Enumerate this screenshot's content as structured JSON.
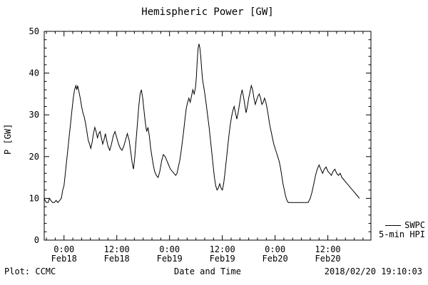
{
  "chart_data": {
    "type": "line",
    "title": "Hemispheric Power [GW]",
    "xlabel": "Date and Time",
    "ylabel": "P [GW]",
    "ylim": [
      0,
      50
    ],
    "y_ticks": [
      0,
      10,
      20,
      30,
      40,
      50
    ],
    "x_axis_unit": "hours since 2018-02-18 00:00",
    "xlim": [
      -4.5,
      69.8
    ],
    "x_ticks": [
      {
        "t": 0,
        "time": "0:00",
        "date": "Feb18"
      },
      {
        "t": 12,
        "time": "12:00",
        "date": "Feb18"
      },
      {
        "t": 24,
        "time": "0:00",
        "date": "Feb19"
      },
      {
        "t": 36,
        "time": "12:00",
        "date": "Feb19"
      },
      {
        "t": 48,
        "time": "0:00",
        "date": "Feb20"
      },
      {
        "t": 60,
        "time": "12:00",
        "date": "Feb20"
      }
    ],
    "grid": false,
    "line_color": "#000000",
    "background": "#ffffff",
    "legend": {
      "source": "SWPC",
      "series": "5-min HPI",
      "position": "outside-right-bottom"
    },
    "series": [
      {
        "name": "SWPC 5-min HPI",
        "points": [
          [
            -4.5,
            10
          ],
          [
            -4.3,
            9.5
          ],
          [
            -4.0,
            9
          ],
          [
            -3.6,
            9
          ],
          [
            -3.3,
            10
          ],
          [
            -3.0,
            9.5
          ],
          [
            -2.6,
            9
          ],
          [
            -2.2,
            9
          ],
          [
            -1.8,
            9.5
          ],
          [
            -1.4,
            9
          ],
          [
            -1.0,
            9.5
          ],
          [
            -0.6,
            10
          ],
          [
            -0.3,
            12
          ],
          [
            0,
            13
          ],
          [
            0.3,
            16
          ],
          [
            0.6,
            19
          ],
          [
            0.9,
            22
          ],
          [
            1.2,
            25
          ],
          [
            1.5,
            28
          ],
          [
            1.8,
            31
          ],
          [
            2.1,
            34
          ],
          [
            2.4,
            36
          ],
          [
            2.7,
            37
          ],
          [
            2.9,
            36
          ],
          [
            3.1,
            37
          ],
          [
            3.4,
            35.5
          ],
          [
            3.7,
            34
          ],
          [
            4.0,
            32
          ],
          [
            4.3,
            30.5
          ],
          [
            4.6,
            29.5
          ],
          [
            4.9,
            28
          ],
          [
            5.2,
            26
          ],
          [
            5.5,
            24
          ],
          [
            5.8,
            23
          ],
          [
            6.1,
            22
          ],
          [
            6.4,
            23.5
          ],
          [
            6.7,
            25.5
          ],
          [
            7.0,
            27
          ],
          [
            7.3,
            26
          ],
          [
            7.6,
            24.5
          ],
          [
            7.9,
            25.5
          ],
          [
            8.2,
            26
          ],
          [
            8.5,
            24.5
          ],
          [
            8.8,
            23
          ],
          [
            9.1,
            24
          ],
          [
            9.4,
            25.5
          ],
          [
            9.7,
            24
          ],
          [
            10.0,
            22.5
          ],
          [
            10.4,
            21.5
          ],
          [
            10.8,
            23
          ],
          [
            11.2,
            25
          ],
          [
            11.6,
            26
          ],
          [
            12.0,
            24.5
          ],
          [
            12.4,
            23
          ],
          [
            12.8,
            22
          ],
          [
            13.2,
            21.5
          ],
          [
            13.6,
            22.5
          ],
          [
            14.0,
            24
          ],
          [
            14.4,
            25.5
          ],
          [
            14.8,
            24
          ],
          [
            15.2,
            21
          ],
          [
            15.5,
            18.5
          ],
          [
            15.8,
            17
          ],
          [
            16.1,
            20
          ],
          [
            16.4,
            24
          ],
          [
            16.7,
            28
          ],
          [
            17.0,
            32
          ],
          [
            17.3,
            35
          ],
          [
            17.6,
            36
          ],
          [
            17.9,
            34
          ],
          [
            18.2,
            31
          ],
          [
            18.5,
            28
          ],
          [
            18.8,
            26
          ],
          [
            19.1,
            27
          ],
          [
            19.4,
            25
          ],
          [
            19.7,
            22
          ],
          [
            20.0,
            20
          ],
          [
            20.3,
            18
          ],
          [
            20.6,
            16.5
          ],
          [
            21.0,
            15.5
          ],
          [
            21.4,
            15
          ],
          [
            21.8,
            16.5
          ],
          [
            22.2,
            19
          ],
          [
            22.6,
            20.5
          ],
          [
            23.0,
            20
          ],
          [
            23.4,
            19
          ],
          [
            23.8,
            18
          ],
          [
            24.2,
            17
          ],
          [
            24.6,
            16.5
          ],
          [
            25.0,
            16
          ],
          [
            25.4,
            15.5
          ],
          [
            25.7,
            16
          ],
          [
            26.0,
            17.5
          ],
          [
            26.3,
            19
          ],
          [
            26.6,
            21
          ],
          [
            26.9,
            23.5
          ],
          [
            27.2,
            26
          ],
          [
            27.5,
            29
          ],
          [
            27.8,
            31.5
          ],
          [
            28.1,
            33
          ],
          [
            28.4,
            34
          ],
          [
            28.7,
            33
          ],
          [
            29.0,
            34.5
          ],
          [
            29.3,
            36
          ],
          [
            29.6,
            35
          ],
          [
            29.9,
            36.5
          ],
          [
            30.1,
            39
          ],
          [
            30.3,
            43
          ],
          [
            30.5,
            46
          ],
          [
            30.7,
            47
          ],
          [
            30.9,
            46
          ],
          [
            31.1,
            44
          ],
          [
            31.3,
            41
          ],
          [
            31.5,
            38.5
          ],
          [
            31.8,
            36.5
          ],
          [
            32.1,
            34.5
          ],
          [
            32.4,
            32
          ],
          [
            32.7,
            29.5
          ],
          [
            33.0,
            27
          ],
          [
            33.3,
            24
          ],
          [
            33.6,
            21
          ],
          [
            33.9,
            18
          ],
          [
            34.2,
            15
          ],
          [
            34.5,
            13
          ],
          [
            34.8,
            12
          ],
          [
            35.1,
            12.5
          ],
          [
            35.4,
            13.5
          ],
          [
            35.7,
            12.5
          ],
          [
            36.0,
            12
          ],
          [
            36.3,
            13.5
          ],
          [
            36.6,
            16
          ],
          [
            36.9,
            19
          ],
          [
            37.2,
            22
          ],
          [
            37.5,
            25
          ],
          [
            37.8,
            27.5
          ],
          [
            38.1,
            29.5
          ],
          [
            38.4,
            31
          ],
          [
            38.7,
            32
          ],
          [
            39.0,
            30.5
          ],
          [
            39.3,
            29
          ],
          [
            39.6,
            30.5
          ],
          [
            39.9,
            32.5
          ],
          [
            40.2,
            34.5
          ],
          [
            40.5,
            36
          ],
          [
            40.8,
            34.5
          ],
          [
            41.1,
            32.5
          ],
          [
            41.4,
            30.5
          ],
          [
            41.7,
            32
          ],
          [
            42.0,
            34
          ],
          [
            42.3,
            35.5
          ],
          [
            42.6,
            37
          ],
          [
            42.9,
            36
          ],
          [
            43.2,
            34
          ],
          [
            43.5,
            32.5
          ],
          [
            43.8,
            33.5
          ],
          [
            44.1,
            34.5
          ],
          [
            44.4,
            35
          ],
          [
            44.7,
            34
          ],
          [
            45.0,
            32.5
          ],
          [
            45.3,
            33
          ],
          [
            45.6,
            34
          ],
          [
            45.9,
            33
          ],
          [
            46.2,
            31.5
          ],
          [
            46.5,
            29.5
          ],
          [
            46.8,
            27.5
          ],
          [
            47.1,
            26
          ],
          [
            47.4,
            24.5
          ],
          [
            47.7,
            23
          ],
          [
            48.0,
            22
          ],
          [
            48.3,
            21
          ],
          [
            48.6,
            20
          ],
          [
            48.9,
            19
          ],
          [
            49.2,
            17.5
          ],
          [
            49.5,
            15.5
          ],
          [
            49.8,
            13.5
          ],
          [
            50.1,
            12
          ],
          [
            50.4,
            10.5
          ],
          [
            50.7,
            9.5
          ],
          [
            51.0,
            9
          ],
          [
            51.5,
            9
          ],
          [
            52.0,
            9
          ],
          [
            52.5,
            9
          ],
          [
            53.0,
            9
          ],
          [
            53.5,
            9
          ],
          [
            54.0,
            9
          ],
          [
            54.5,
            9
          ],
          [
            55.0,
            9
          ],
          [
            55.5,
            9
          ],
          [
            56.0,
            10
          ],
          [
            56.4,
            11.5
          ],
          [
            56.8,
            13.5
          ],
          [
            57.2,
            15.5
          ],
          [
            57.6,
            17
          ],
          [
            58.0,
            18
          ],
          [
            58.4,
            17
          ],
          [
            58.8,
            16
          ],
          [
            59.2,
            17
          ],
          [
            59.6,
            17.5
          ],
          [
            60.0,
            16.5
          ],
          [
            60.4,
            16
          ],
          [
            60.8,
            15.5
          ],
          [
            61.2,
            16.5
          ],
          [
            61.6,
            17
          ],
          [
            62.0,
            16
          ],
          [
            62.4,
            15.5
          ],
          [
            62.8,
            16
          ],
          [
            63.2,
            15
          ],
          [
            63.6,
            14.5
          ],
          [
            64.0,
            14
          ],
          [
            64.4,
            13.5
          ],
          [
            64.8,
            13
          ],
          [
            65.2,
            12.5
          ],
          [
            65.6,
            12
          ],
          [
            66.0,
            11.5
          ],
          [
            66.4,
            11
          ],
          [
            66.8,
            10.5
          ],
          [
            67.2,
            10
          ]
        ]
      }
    ]
  },
  "footer": {
    "left": "Plot: CCMC",
    "right": "2018/02/20 19:10:03"
  }
}
